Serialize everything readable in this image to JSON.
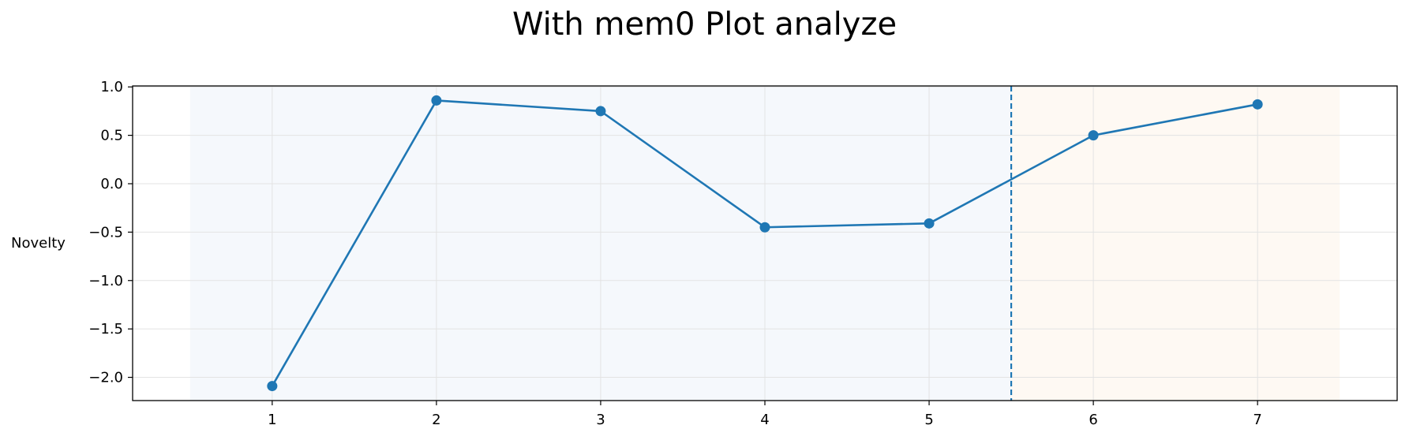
{
  "chart_data": {
    "type": "line",
    "title": "With mem0 Plot analyze",
    "xlabel": "",
    "ylabel": "Novelty",
    "x": [
      1,
      2,
      3,
      4,
      5,
      6,
      7
    ],
    "series": [
      {
        "values": [
          -2.09,
          0.86,
          0.75,
          -0.45,
          -0.41,
          0.5,
          0.82
        ]
      }
    ],
    "xticks": [
      1,
      2,
      3,
      4,
      5,
      6,
      7
    ],
    "yticks": [
      1.0,
      0.5,
      0.0,
      -0.5,
      -1.0,
      -1.5,
      -2.0
    ],
    "ytick_labels": [
      "1.0",
      "0.5",
      "0.0",
      "−0.5",
      "−1.0",
      "−1.5",
      "−2.0"
    ],
    "xlim": [
      0.15,
      7.85
    ],
    "ylim": [
      -2.24,
      1.01
    ],
    "grid": true,
    "shaded_regions": [
      {
        "x_start": 0.5,
        "x_end": 5.5,
        "color": "#f5f8fc"
      },
      {
        "x_start": 5.5,
        "x_end": 7.5,
        "color": "#fef9f3"
      }
    ],
    "vertical_line": {
      "x": 5.5,
      "style": "dashed",
      "color": "#1f77b4"
    },
    "colors": {
      "series": "#1f77b4",
      "grid": "#e3e3e3",
      "axis": "#000000"
    }
  }
}
